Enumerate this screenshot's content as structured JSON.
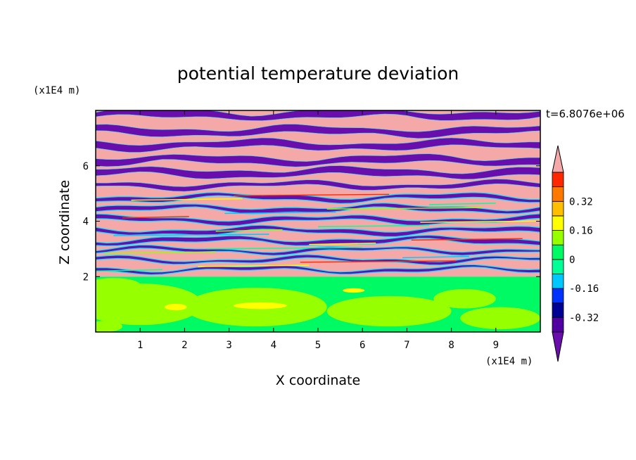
{
  "chart_data": {
    "type": "heatmap",
    "title": "potential temperature deviation",
    "xlabel": "X coordinate",
    "ylabel": "Z coordinate",
    "x_unit": "(x1E4 m)",
    "y_unit": "(x1E4 m)",
    "time_label": "t=6.8076e+06",
    "xlim": [
      0,
      10
    ],
    "ylim": [
      0,
      8
    ],
    "xticks": [
      1,
      2,
      3,
      4,
      5,
      6,
      7,
      8,
      9
    ],
    "yticks": [
      2,
      4,
      6
    ],
    "colorbar": {
      "levels": [
        -0.48,
        -0.4,
        -0.32,
        -0.24,
        -0.16,
        -0.08,
        0,
        0.08,
        0.16,
        0.24,
        0.32,
        0.4,
        0.48
      ],
      "tick_labels": [
        "0.32",
        "0.16",
        "0",
        "-0.16",
        "-0.32"
      ],
      "tick_values": [
        0.32,
        0.16,
        0,
        -0.16,
        -0.32
      ],
      "colors_low_to_high": [
        "#6a0dad",
        "#5000a0",
        "#000096",
        "#0032ff",
        "#00c8ff",
        "#00ff96",
        "#00fa64",
        "#96ff00",
        "#ffff00",
        "#ffbe00",
        "#ff7800",
        "#ff2800",
        "#f4a8a8"
      ]
    },
    "field_description_colors": {
      "upper_bands": [
        "#f4a8a8",
        "#6a0dad"
      ],
      "lower_layer_base": "#00fa64",
      "lower_layer_patches": [
        "#96ff00",
        "#ffff00"
      ]
    },
    "boundary_layer_top": 2
  }
}
